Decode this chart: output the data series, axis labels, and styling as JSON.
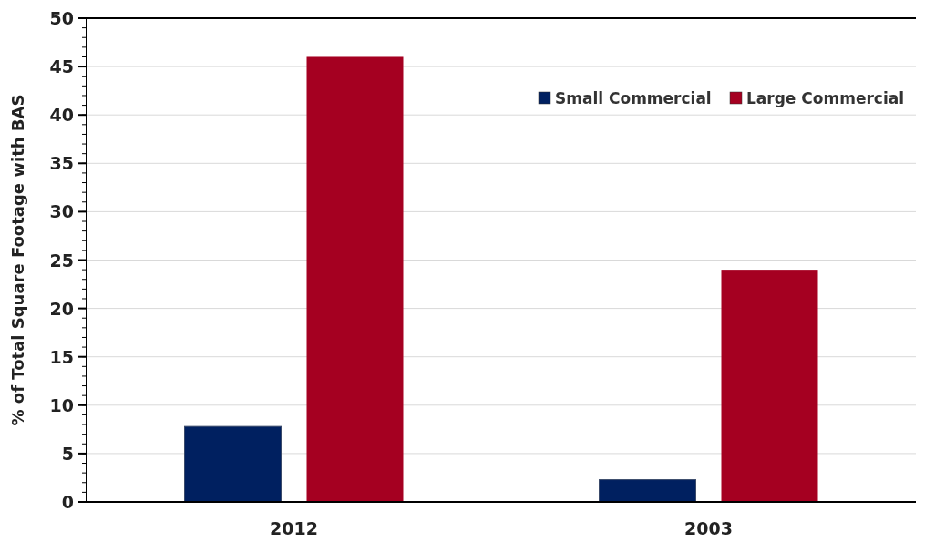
{
  "chart_data": {
    "type": "bar",
    "ylabel": "% of Total Square Footage with BAS",
    "categories": [
      "2012",
      "2003"
    ],
    "series": [
      {
        "name": "Small Commercial",
        "color": "#002060",
        "values": [
          7.8,
          2.3
        ]
      },
      {
        "name": "Large Commercial",
        "color": "#a50021",
        "values": [
          46,
          24
        ]
      }
    ],
    "ylim": [
      0,
      50
    ],
    "yticks": [
      0,
      5,
      10,
      15,
      20,
      25,
      30,
      35,
      40,
      45,
      50
    ],
    "grid": "y",
    "legend": "top right"
  }
}
